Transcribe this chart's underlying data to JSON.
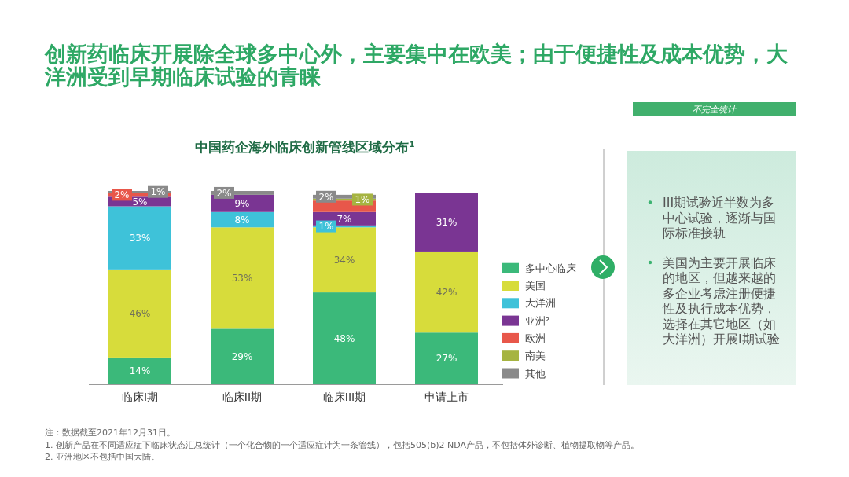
{
  "chart_data": [
    {
      "type": "bar",
      "title": "创新药临床开展除全球多中心外，主要集中在欧美；由于便捷性及成本优势，大洋洲受到早期临床试验的青睐",
      "subtitle": "中国药企海外临床创新管线区域分布¹",
      "categories": [
        "临床I期",
        "临床II期",
        "临床III期",
        "申请上市"
      ],
      "stacked": true,
      "legend": "right",
      "series": [
        {
          "name": "多中心临床",
          "color": "#3bb97a",
          "values": [
            14,
            29,
            48,
            27
          ],
          "value_labels": [
            "14%",
            "29%",
            "48%",
            "27%"
          ]
        },
        {
          "name": "美国",
          "color": "#d7dc3b",
          "values": [
            46,
            53,
            34,
            42
          ],
          "value_labels": [
            "46%",
            "53%",
            "34%",
            "42%"
          ]
        },
        {
          "name": "大洋洲",
          "color": "#3ec2d9",
          "values": [
            33,
            8,
            1,
            null
          ],
          "value_labels": [
            "33%",
            "8%",
            "1%",
            null
          ]
        },
        {
          "name": "亚洲²",
          "color": "#7a3593",
          "values": [
            5,
            9,
            7,
            31
          ],
          "value_labels": [
            "5%",
            "9%",
            "7%",
            "31%"
          ]
        },
        {
          "name": "欧洲",
          "color": "#e8574a",
          "values": [
            2,
            null,
            6,
            null
          ],
          "value_labels": [
            "2%",
            null,
            null,
            null
          ]
        },
        {
          "name": "南美",
          "color": "#a6b441",
          "values": [
            null,
            null,
            1,
            null
          ],
          "value_labels": [
            null,
            null,
            "1%",
            null
          ]
        },
        {
          "name": "其他",
          "color": "#8a8a8a",
          "values": [
            1,
            2,
            2,
            null
          ],
          "value_labels": [
            "1%",
            "2%",
            "2%",
            null
          ]
        }
      ],
      "annotations": [
        "注：数据截至2021年12月31日。",
        "1. 创新产品在不同适应症下临床状态汇总统计（一个化合物的一个适应症计为一条管线），包括505(b)2 NDA产品，不包括体外诊断、植物提取物等产品。",
        "2. 亚洲地区不包括中国大陆。"
      ]
    },
    {
      "type": "other",
      "title": "不完全统计",
      "annotations": [
        "III期试验近半数为多中心试验，逐渐与国际标准接轨",
        "美国为主要开展临床的地区，但越来越的多企业考虑注册便捷性及执行成本优势，选择在其它地区（如大洋洲）开展I期试验"
      ]
    }
  ]
}
